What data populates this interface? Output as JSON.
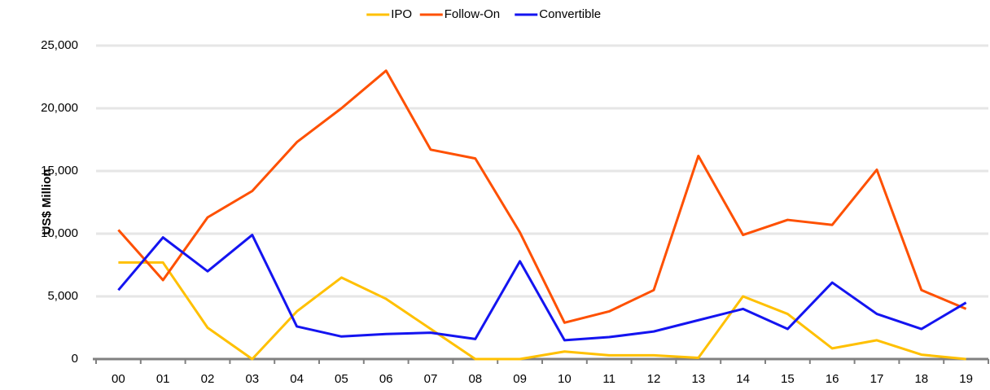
{
  "chart_data": {
    "type": "line",
    "y_label": "US$ Million",
    "categories": [
      "00",
      "01",
      "02",
      "03",
      "04",
      "05",
      "06",
      "07",
      "08",
      "09",
      "10",
      "11",
      "12",
      "13",
      "14",
      "15",
      "16",
      "17",
      "18",
      "19"
    ],
    "series": [
      {
        "name": "IPO",
        "color": "#ffc000",
        "values": [
          7700,
          7700,
          2500,
          0,
          3800,
          6500,
          4800,
          2400,
          0,
          0,
          600,
          300,
          300,
          100,
          5000,
          3600,
          850,
          1500,
          350,
          0
        ]
      },
      {
        "name": "Follow-On",
        "color": "#fe5000",
        "values": [
          10300,
          6300,
          11300,
          13400,
          17300,
          20000,
          23000,
          16700,
          16000,
          10100,
          2900,
          3800,
          5500,
          16200,
          9900,
          11100,
          10700,
          15100,
          5500,
          4000
        ]
      },
      {
        "name": "Convertible",
        "color": "#1414f0",
        "values": [
          5500,
          9700,
          7000,
          9900,
          2600,
          1800,
          2000,
          2100,
          1600,
          7800,
          1500,
          1750,
          2200,
          3100,
          4000,
          2400,
          6100,
          3600,
          2400,
          4500
        ]
      }
    ],
    "ylim": [
      0,
      25000
    ],
    "yticks": [
      0,
      {
        "value": 5000,
        "label": "5,000"
      },
      {
        "value": 10000,
        "label": "10,000"
      },
      {
        "value": 15000,
        "label": "15,000"
      },
      {
        "value": 20000,
        "label": "20,000"
      },
      {
        "value": 25000,
        "label": "25,000"
      }
    ],
    "grid": true,
    "legend": "top"
  }
}
